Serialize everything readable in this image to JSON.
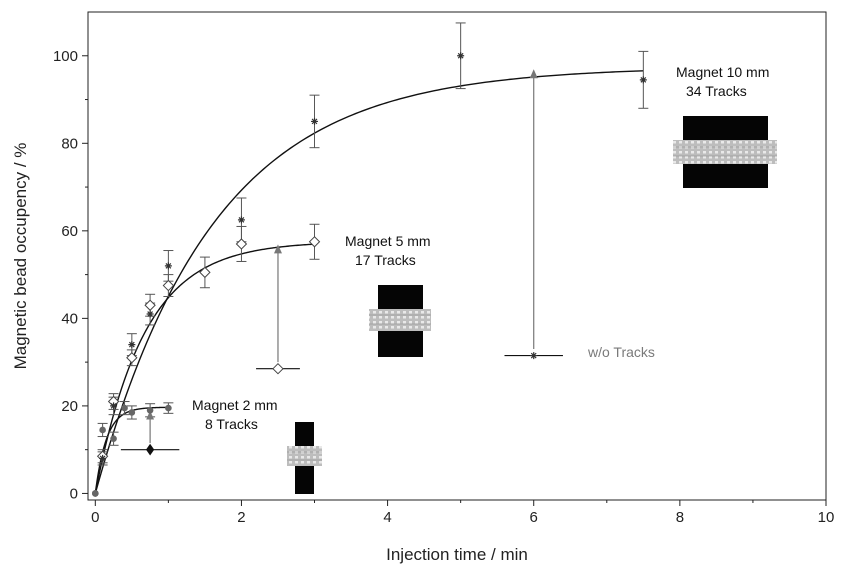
{
  "chart_data": {
    "type": "scatter",
    "xlabel": "Injection time / min",
    "ylabel": "Magnetic bead occupency / %",
    "xlim": [
      -0.1,
      10
    ],
    "ylim": [
      -1.5,
      110
    ],
    "xticks": [
      0,
      2,
      4,
      6,
      8,
      10
    ],
    "yticks": [
      0,
      20,
      40,
      60,
      80,
      100
    ],
    "xtick_labels": [
      "0",
      "2",
      "4",
      "6",
      "8",
      "10"
    ],
    "ytick_labels": [
      "0",
      "20",
      "40",
      "60",
      "80",
      "100"
    ],
    "grid": false,
    "series": [
      {
        "marker": "dot",
        "points": [
          {
            "x": 0,
            "y": 0,
            "err": 0
          },
          {
            "x": 0.1,
            "y": 14.5,
            "err": 1.5
          },
          {
            "x": 0.25,
            "y": 12.5,
            "err": 1.5
          },
          {
            "x": 0.4,
            "y": 19.5,
            "err": 1.5
          },
          {
            "x": 0.5,
            "y": 18.5,
            "err": 1.5
          },
          {
            "x": 0.75,
            "y": 19,
            "err": 1.5
          },
          {
            "x": 1,
            "y": 19.5,
            "err": 1.2
          }
        ],
        "fit": {
          "a": 19.7,
          "k": 6.5
        }
      },
      {
        "marker": "diamond",
        "points": [
          {
            "x": 0,
            "y": 0,
            "err": 0
          },
          {
            "x": 0.1,
            "y": 8.5,
            "err": 1.5
          },
          {
            "x": 0.25,
            "y": 21,
            "err": 1.8
          },
          {
            "x": 0.5,
            "y": 31,
            "err": 1.8
          },
          {
            "x": 0.75,
            "y": 43,
            "err": 2.5
          },
          {
            "x": 1,
            "y": 47.5,
            "err": 2.5
          },
          {
            "x": 1.5,
            "y": 50.5,
            "err": 3.5
          },
          {
            "x": 2,
            "y": 57,
            "err": 4
          },
          {
            "x": 3,
            "y": 57.5,
            "err": 4
          }
        ],
        "fit": {
          "a": 57.6,
          "k": 1.5
        }
      },
      {
        "marker": "star",
        "points": [
          {
            "x": 0,
            "y": 0,
            "err": 0
          },
          {
            "x": 0.1,
            "y": 8,
            "err": 1.5
          },
          {
            "x": 0.25,
            "y": 20,
            "err": 2
          },
          {
            "x": 0.5,
            "y": 34,
            "err": 2.5
          },
          {
            "x": 0.75,
            "y": 41,
            "err": 2.5
          },
          {
            "x": 1,
            "y": 52,
            "err": 3.5
          },
          {
            "x": 2,
            "y": 62.5,
            "err": 5
          },
          {
            "x": 3,
            "y": 85,
            "err": 6
          },
          {
            "x": 5,
            "y": 100,
            "err": 7.5
          },
          {
            "x": 7.5,
            "y": 94.5,
            "err": 6.5
          }
        ],
        "fit": {
          "a": 97.5,
          "k": 0.62
        }
      }
    ],
    "control_points": [
      {
        "x": 0.75,
        "y": 10,
        "xerr": 0.4,
        "marker": "filled-diamond"
      },
      {
        "x": 2.5,
        "y": 28.5,
        "xerr": 0.3,
        "marker": "diamond"
      },
      {
        "x": 6,
        "y": 31.5,
        "xerr": 0.4,
        "marker": "star"
      }
    ],
    "arrows": [
      {
        "x": 0.75,
        "from": 11.5,
        "to": 18
      },
      {
        "x": 2.5,
        "from": 30,
        "to": 56
      },
      {
        "x": 6,
        "from": 33,
        "to": 96
      }
    ],
    "annotations": {
      "magnet_2": {
        "line1": "Magnet 2 mm",
        "line2": "8 Tracks"
      },
      "magnet_5": {
        "line1": "Magnet 5 mm",
        "line2": "17 Tracks"
      },
      "magnet_10": {
        "line1": "Magnet 10 mm",
        "line2": "34 Tracks"
      },
      "without": "w/o Tracks"
    }
  },
  "colors": {
    "axis": "#222222",
    "data": "#555555",
    "fit": "#111111",
    "arrow": "#777777",
    "annotation_grey": "#7a7a7a"
  }
}
